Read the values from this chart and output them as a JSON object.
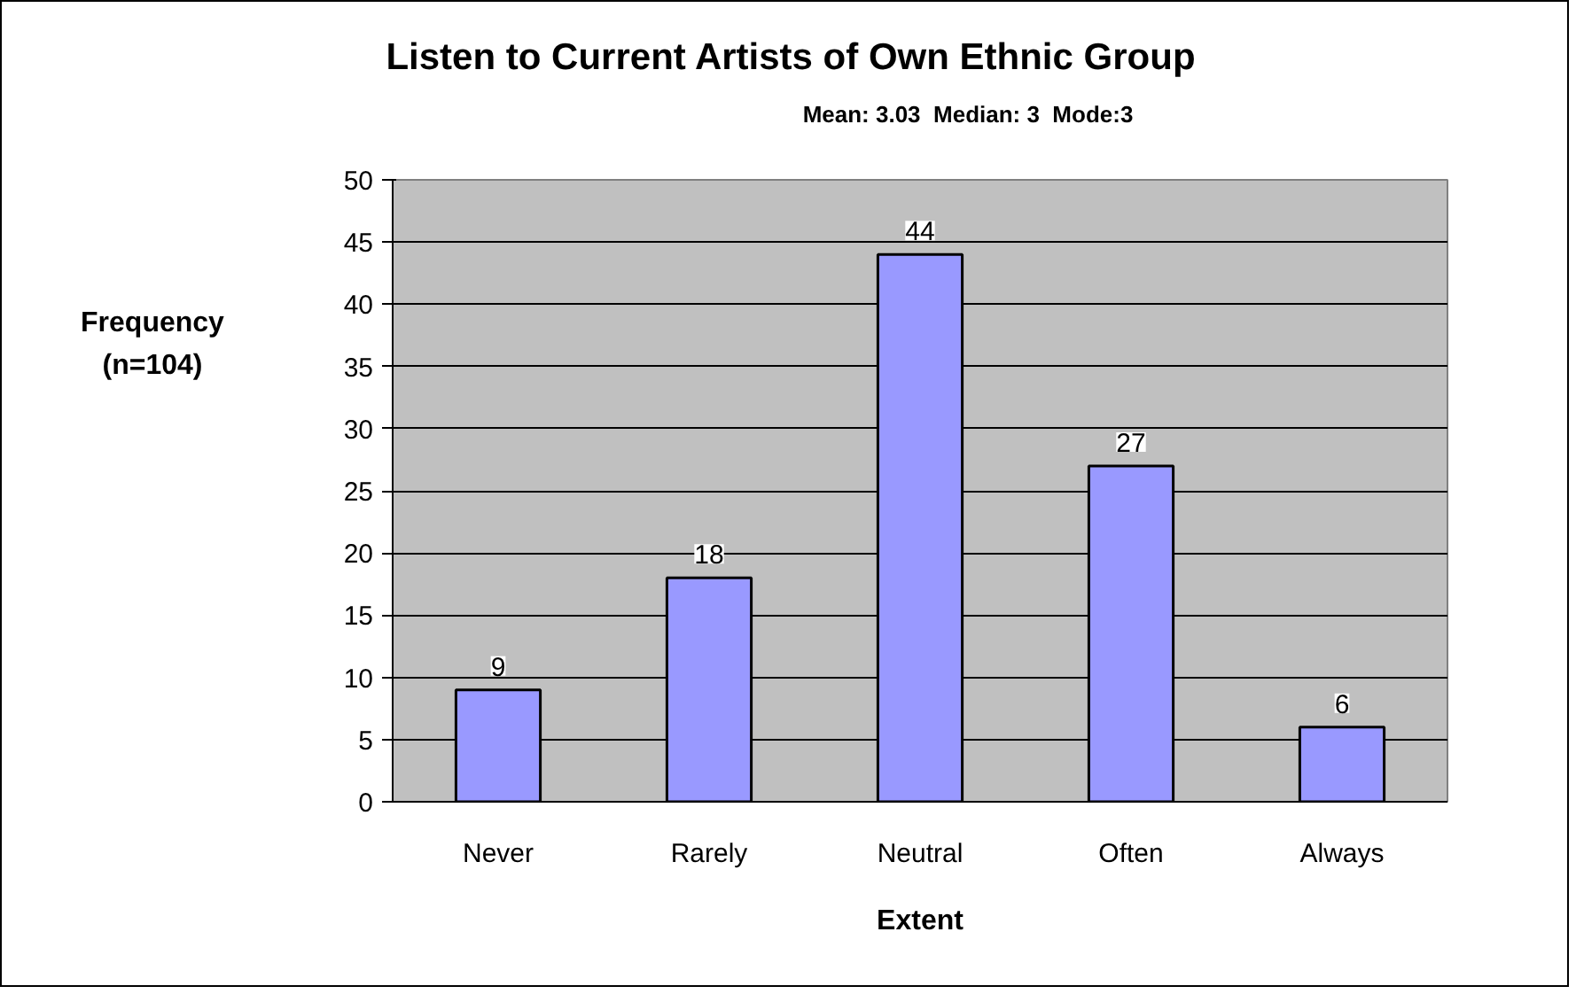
{
  "chart_data": {
    "type": "bar",
    "title": "Listen to Current Artists of Own Ethnic Group",
    "subtitle": "Mean: 3.03  Median: 3  Mode:3",
    "xlabel": "Extent",
    "ylabel": "Frequency\n(n=104)",
    "categories": [
      "Never",
      "Rarely",
      "Neutral",
      "Often",
      "Always"
    ],
    "values": [
      9,
      18,
      44,
      27,
      6
    ],
    "color": "#9999ff",
    "ylim": [
      0,
      50
    ],
    "yticks": [
      0,
      5,
      10,
      15,
      20,
      25,
      30,
      35,
      40,
      45,
      50
    ],
    "grid": "y",
    "data_labels": true
  }
}
